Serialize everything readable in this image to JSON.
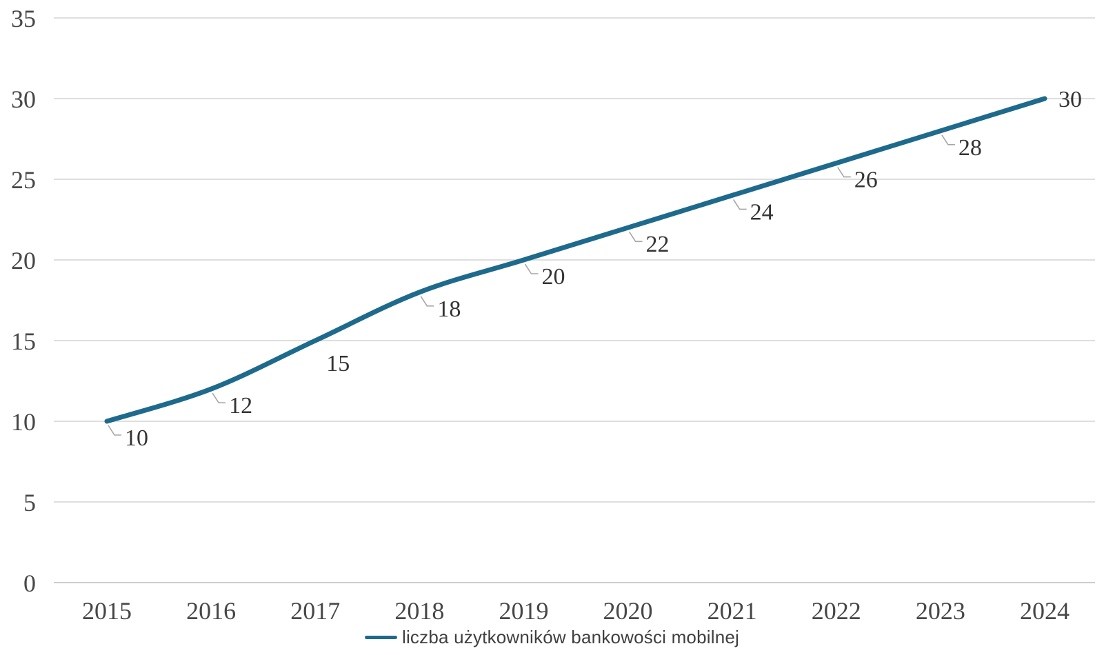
{
  "chart_data": {
    "type": "line",
    "title": "",
    "categories": [
      "2015",
      "2016",
      "2017",
      "2018",
      "2019",
      "2020",
      "2021",
      "2022",
      "2023",
      "2024"
    ],
    "series": [
      {
        "name": "liczba użytkowników bankowości mobilnej",
        "values": [
          10,
          12,
          15,
          18,
          20,
          22,
          24,
          26,
          28,
          30
        ],
        "color": "#1e6a8c",
        "line_width": 7,
        "smoothed": true
      }
    ],
    "data_labels": {
      "show": true,
      "labels": [
        "10",
        "12",
        "15",
        "18",
        "20",
        "22",
        "24",
        "26",
        "28",
        "30"
      ],
      "placements": [
        "callout",
        "callout",
        "below",
        "callout",
        "callout",
        "callout",
        "callout",
        "callout",
        "callout",
        "right"
      ]
    },
    "xlabel": "",
    "ylabel": "",
    "ylim": [
      0,
      35
    ],
    "yticks": [
      0,
      5,
      10,
      15,
      20,
      25,
      30,
      35
    ],
    "grid": "horizontal",
    "legend_position": "bottom-center",
    "colors": {
      "gridline": "#d9d9d9",
      "axis_line": "#c6c6c6",
      "tick_label": "#474747",
      "data_label": "#333333",
      "leader_line": "#a6a6a6",
      "legend_text": "#3f3f3f",
      "background": "#ffffff"
    }
  },
  "legend": {
    "label": "liczba użytkowników bankowości mobilnej"
  }
}
